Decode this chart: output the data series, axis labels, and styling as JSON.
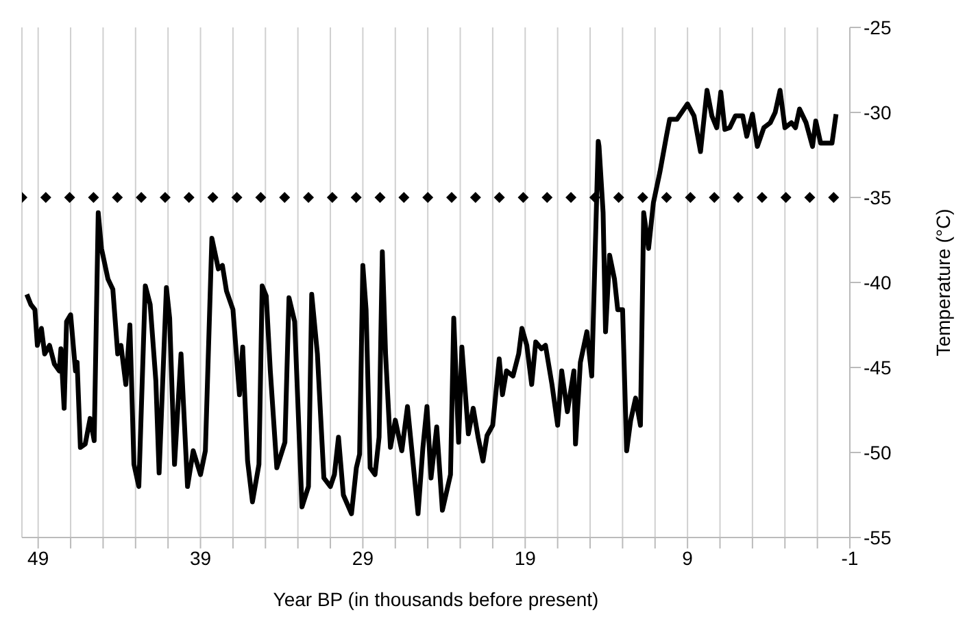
{
  "chart_data": {
    "type": "line",
    "xlabel": "Year BP (in thousands before present)",
    "ylabel": "Temperature (°C)",
    "xlim": [
      50,
      -1
    ],
    "ylim": [
      -55,
      -25
    ],
    "xticks": [
      49,
      {
        "value": 47,
        "label": null
      },
      {
        "value": 45,
        "label": null
      },
      {
        "value": 43,
        "label": null
      },
      {
        "value": 41,
        "label": null
      },
      39,
      {
        "value": 37,
        "label": null
      },
      {
        "value": 35,
        "label": null
      },
      {
        "value": 33,
        "label": null
      },
      {
        "value": 31,
        "label": null
      },
      29,
      {
        "value": 27,
        "label": null
      },
      {
        "value": 25,
        "label": null
      },
      {
        "value": 23,
        "label": null
      },
      {
        "value": 21,
        "label": null
      },
      19,
      {
        "value": 17,
        "label": null
      },
      {
        "value": 15,
        "label": null
      },
      {
        "value": 13,
        "label": null
      },
      {
        "value": 11,
        "label": null
      },
      9,
      {
        "value": 7,
        "label": null
      },
      {
        "value": 5,
        "label": null
      },
      {
        "value": 3,
        "label": null
      },
      {
        "value": 1,
        "label": null
      },
      -1
    ],
    "yticks": [
      -55,
      -50,
      -45,
      -40,
      -35,
      -30,
      -25
    ],
    "grid": "x",
    "line_style": "solid",
    "marker": "none",
    "series": [
      {
        "color": "#000000",
        "x": [
          49.7,
          49.45,
          49.2,
          49.05,
          48.8,
          48.6,
          48.3,
          48.0,
          47.7,
          47.6,
          47.4,
          47.25,
          47.0,
          46.7,
          46.6,
          46.4,
          46.1,
          45.8,
          45.55,
          45.3,
          45.1,
          44.7,
          44.4,
          44.1,
          43.9,
          43.6,
          43.35,
          43.1,
          42.8,
          42.4,
          42.1,
          41.75,
          41.55,
          41.1,
          40.9,
          40.6,
          40.2,
          39.8,
          39.45,
          39.0,
          38.7,
          38.3,
          37.9,
          37.65,
          37.4,
          37.0,
          36.6,
          36.4,
          36.1,
          35.8,
          35.4,
          35.2,
          34.95,
          34.7,
          34.3,
          33.8,
          33.55,
          33.2,
          32.75,
          32.35,
          32.15,
          31.8,
          31.4,
          31.0,
          30.75,
          30.5,
          30.2,
          29.7,
          29.4,
          29.2,
          29.0,
          28.8,
          28.55,
          28.25,
          28.0,
          27.8,
          27.6,
          27.3,
          27.0,
          26.6,
          26.25,
          26.0,
          25.6,
          25.3,
          25.05,
          24.8,
          24.45,
          24.1,
          23.6,
          23.4,
          23.1,
          22.9,
          22.5,
          22.2,
          21.9,
          21.6,
          21.35,
          21.0,
          20.6,
          20.4,
          20.15,
          19.75,
          19.4,
          19.2,
          18.9,
          18.6,
          18.35,
          18.0,
          17.75,
          17.35,
          17.0,
          16.75,
          16.4,
          16.0,
          15.9,
          15.6,
          15.2,
          14.9,
          14.5,
          14.45,
          14.2,
          14.05,
          13.8,
          13.5,
          13.3,
          13.0,
          12.75,
          12.5,
          12.2,
          11.9,
          11.7,
          11.4,
          11.1,
          10.7,
          10.3,
          10.1,
          9.65,
          9.0,
          8.6,
          8.2,
          7.8,
          7.5,
          7.2,
          6.95,
          6.7,
          6.4,
          6.05,
          5.6,
          5.35,
          5.0,
          4.7,
          4.3,
          3.9,
          3.6,
          3.3,
          3.0,
          2.6,
          2.35,
          2.1,
          1.7,
          1.3,
          1.1,
          0.8,
          0.45,
          0.1,
          -0.15
        ],
        "values": [
          -40.7,
          -41.3,
          -41.6,
          -43.7,
          -42.7,
          -44.2,
          -43.7,
          -44.8,
          -45.2,
          -43.9,
          -47.4,
          -42.3,
          -41.9,
          -45.2,
          -44.7,
          -49.7,
          -49.5,
          -48.0,
          -49.3,
          -35.9,
          -38.0,
          -39.8,
          -40.4,
          -44.2,
          -43.7,
          -46.0,
          -42.5,
          -50.7,
          -52.0,
          -40.2,
          -41.3,
          -45.8,
          -51.2,
          -40.3,
          -42.1,
          -50.7,
          -44.2,
          -52.0,
          -49.9,
          -51.3,
          -49.9,
          -37.4,
          -39.2,
          -39.0,
          -40.5,
          -41.6,
          -46.6,
          -43.8,
          -50.5,
          -52.9,
          -50.7,
          -40.2,
          -40.8,
          -45.2,
          -50.9,
          -49.4,
          -40.9,
          -42.3,
          -53.2,
          -52.0,
          -40.7,
          -44.2,
          -51.5,
          -52.0,
          -51.3,
          -49.1,
          -52.5,
          -53.6,
          -50.9,
          -50.1,
          -39.0,
          -41.6,
          -50.9,
          -51.3,
          -49.1,
          -38.2,
          -44.2,
          -49.7,
          -48.1,
          -49.9,
          -47.3,
          -49.7,
          -53.6,
          -49.7,
          -47.3,
          -51.5,
          -48.5,
          -53.4,
          -51.3,
          -42.1,
          -49.4,
          -43.8,
          -48.9,
          -47.4,
          -49.1,
          -50.5,
          -49.0,
          -48.4,
          -44.5,
          -46.6,
          -45.2,
          -45.5,
          -44.2,
          -42.7,
          -43.7,
          -46.0,
          -43.5,
          -43.9,
          -43.7,
          -46.0,
          -48.4,
          -45.2,
          -47.6,
          -45.2,
          -49.5,
          -44.7,
          -42.9,
          -45.5,
          -31.7,
          -32.0,
          -35.9,
          -42.9,
          -38.4,
          -39.8,
          -41.6,
          -41.6,
          -49.9,
          -48.1,
          -46.8,
          -48.4,
          -35.9,
          -38.0,
          -35.3,
          -33.5,
          -31.4,
          -30.4,
          -30.4,
          -29.5,
          -30.2,
          -32.3,
          -28.7,
          -30.2,
          -30.9,
          -28.8,
          -31.0,
          -30.9,
          -30.2,
          -30.2,
          -31.4,
          -30.1,
          -32.0,
          -30.9,
          -30.6,
          -30.0,
          -28.7,
          -30.9,
          -30.6,
          -30.9,
          -29.8,
          -30.6,
          -32.0,
          -30.5,
          -31.8,
          -31.8,
          -31.8,
          -30.1
        ]
      },
      {
        "type": "scatter",
        "color": "#000000",
        "marker": "diamond",
        "x": [
          50,
          48.53,
          47.06,
          45.59,
          44.12,
          42.65,
          41.18,
          39.71,
          38.24,
          36.76,
          35.29,
          33.82,
          32.35,
          30.88,
          29.41,
          27.94,
          26.47,
          25.0,
          23.53,
          22.06,
          20.59,
          19.12,
          17.65,
          16.18,
          14.71,
          13.24,
          11.76,
          10.29,
          8.82,
          7.35,
          5.88,
          4.41,
          2.94,
          1.47,
          0
        ],
        "values": [
          -35,
          -35,
          -35,
          -35,
          -35,
          -35,
          -35,
          -35,
          -35,
          -35,
          -35,
          -35,
          -35,
          -35,
          -35,
          -35,
          -35,
          -35,
          -35,
          -35,
          -35,
          -35,
          -35,
          -35,
          -35,
          -35,
          -35,
          -35,
          -35,
          -35,
          -35,
          -35,
          -35,
          -35,
          -35
        ]
      }
    ]
  }
}
